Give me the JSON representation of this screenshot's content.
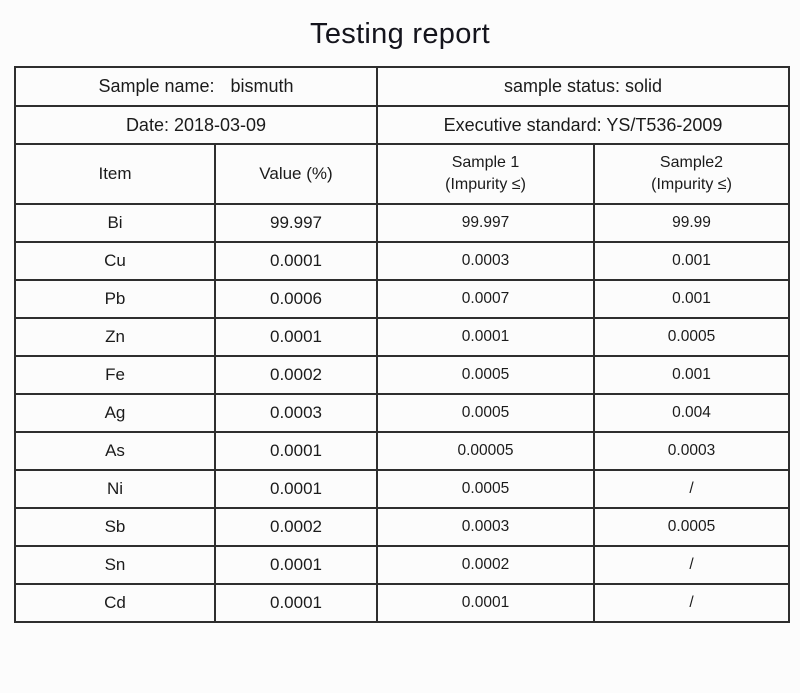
{
  "title": "Testing report",
  "info": {
    "sample_name_label": "Sample name:",
    "sample_name_value": "bismuth",
    "sample_status": "sample status: solid",
    "date": "Date: 2018-03-09",
    "executive_standard": "Executive standard: YS/T536-2009"
  },
  "table": {
    "headers": {
      "item": "Item",
      "value": "Value (%)",
      "sample1": "Sample 1\n(Impurity ≤)",
      "sample2": "Sample2\n(Impurity ≤)"
    },
    "rows": [
      {
        "item": "Bi",
        "value": "99.997",
        "sample1": "99.997",
        "sample2": "99.99"
      },
      {
        "item": "Cu",
        "value": "0.0001",
        "sample1": "0.0003",
        "sample2": "0.001"
      },
      {
        "item": "Pb",
        "value": "0.0006",
        "sample1": "0.0007",
        "sample2": "0.001"
      },
      {
        "item": "Zn",
        "value": "0.0001",
        "sample1": "0.0001",
        "sample2": "0.0005"
      },
      {
        "item": "Fe",
        "value": "0.0002",
        "sample1": "0.0005",
        "sample2": "0.001"
      },
      {
        "item": "Ag",
        "value": "0.0003",
        "sample1": "0.0005",
        "sample2": "0.004"
      },
      {
        "item": "As",
        "value": "0.0001",
        "sample1": "0.00005",
        "sample2": "0.0003"
      },
      {
        "item": "Ni",
        "value": "0.0001",
        "sample1": "0.0005",
        "sample2": "/"
      },
      {
        "item": "Sb",
        "value": "0.0002",
        "sample1": "0.0003",
        "sample2": "0.0005"
      },
      {
        "item": "Sn",
        "value": "0.0001",
        "sample1": "0.0002",
        "sample2": "/"
      },
      {
        "item": "Cd",
        "value": "0.0001",
        "sample1": "0.0001",
        "sample2": "/"
      }
    ]
  }
}
